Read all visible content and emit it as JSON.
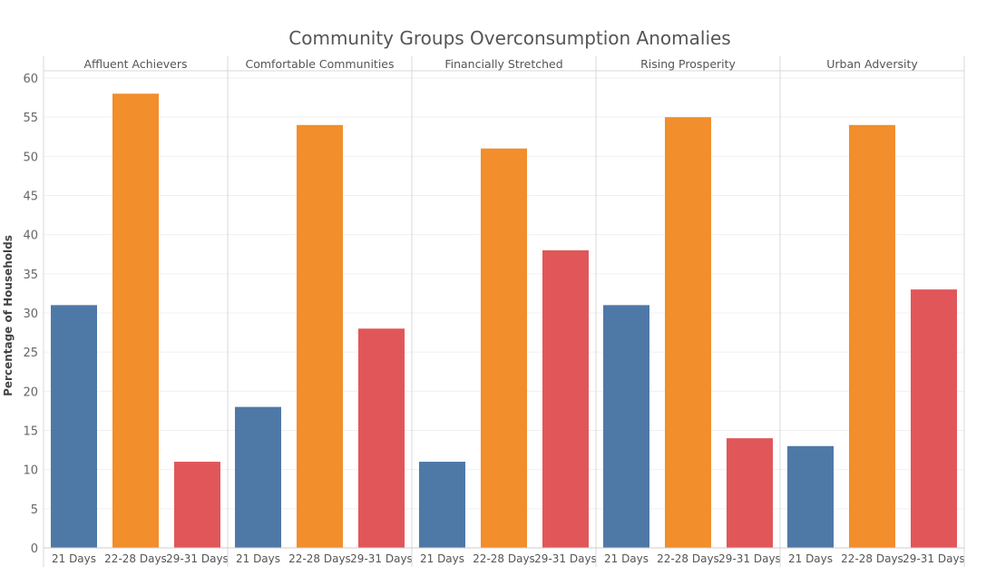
{
  "chart_data": {
    "type": "bar",
    "title": "Community Groups Overconsumption Anomalies",
    "ylabel": "Percentage of Households",
    "xlabel": "",
    "ylim": [
      0,
      60
    ],
    "yticks": [
      0,
      5,
      10,
      15,
      20,
      25,
      30,
      35,
      40,
      45,
      50,
      55,
      60
    ],
    "grid": true,
    "categories": [
      "21 Days",
      "22-28 Days",
      "29-31 Days"
    ],
    "colors": [
      "#4e79a7",
      "#f28e2b",
      "#e15759"
    ],
    "panels": [
      {
        "name": "Affluent Achievers",
        "values": [
          31,
          58,
          11
        ]
      },
      {
        "name": "Comfortable Communities",
        "values": [
          18,
          54,
          28
        ]
      },
      {
        "name": "Financially Stretched",
        "values": [
          11,
          51,
          38
        ]
      },
      {
        "name": "Rising Prosperity",
        "values": [
          31,
          55,
          14
        ]
      },
      {
        "name": "Urban Adversity",
        "values": [
          13,
          54,
          33
        ]
      }
    ]
  }
}
